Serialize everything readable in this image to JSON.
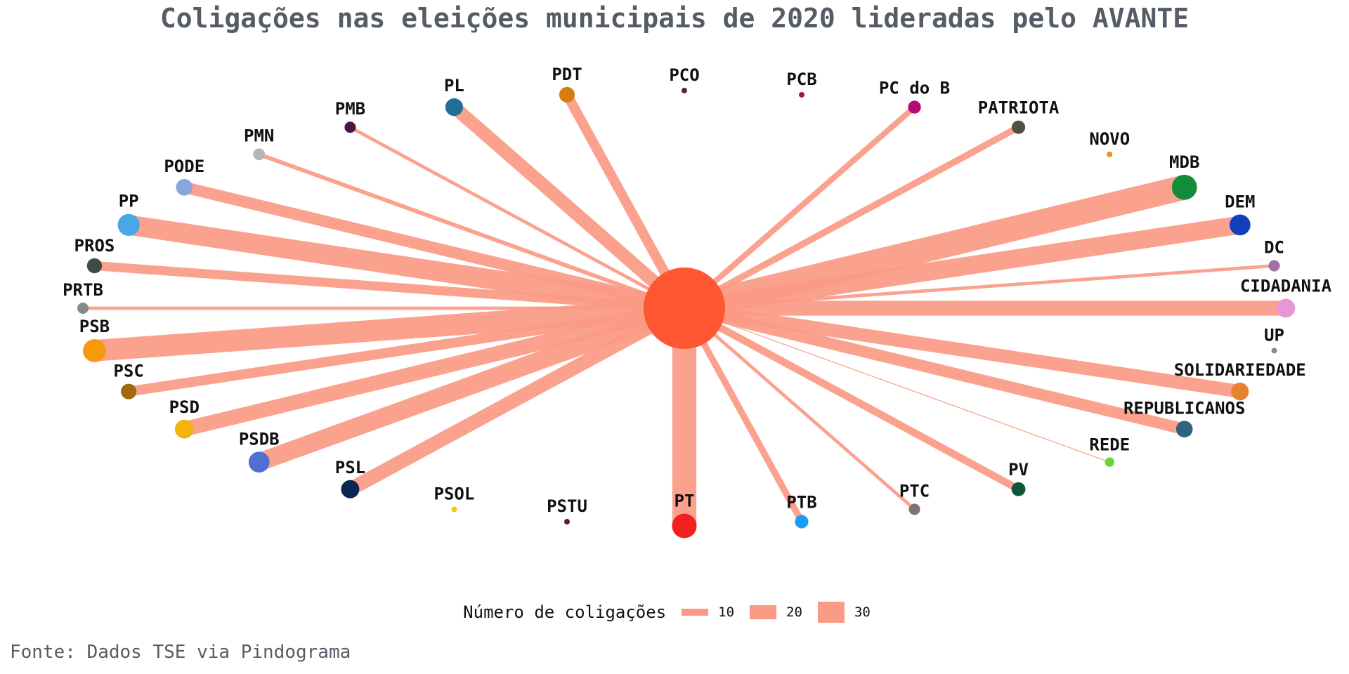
{
  "chart_data": {
    "type": "network",
    "title": "Coligações nas eleições municipais de 2020 lideradas pelo AVANTE",
    "center": {
      "name": "",
      "color": "#ff5733"
    },
    "edge_color": "#fb9a85",
    "nodes": [
      {
        "name": "PT",
        "color": "#f2211d",
        "value": 29
      },
      {
        "name": "PTB",
        "color": "#1a9ef5",
        "value": 8
      },
      {
        "name": "PTC",
        "color": "#7f7470",
        "value": 4
      },
      {
        "name": "PV",
        "color": "#0d5637",
        "value": 9
      },
      {
        "name": "REDE",
        "color": "#6bd33a",
        "value": 0.5
      },
      {
        "name": "REPUBLICANOS",
        "color": "#31627f",
        "value": 14
      },
      {
        "name": "SOLIDARIEDADE",
        "color": "#e58331",
        "value": 16
      },
      {
        "name": "UP",
        "color": "#8a8a8a",
        "value": 0
      },
      {
        "name": "CIDADANIA",
        "color": "#e996d6",
        "value": 18
      },
      {
        "name": "DC",
        "color": "#a06fa3",
        "value": 4
      },
      {
        "name": "DEM",
        "color": "#1240bb",
        "value": 22
      },
      {
        "name": "MDB",
        "color": "#128b3a",
        "value": 30
      },
      {
        "name": "NOVO",
        "color": "#f28e1c",
        "value": 0
      },
      {
        "name": "PATRIOTA",
        "color": "#4f5146",
        "value": 8
      },
      {
        "name": "PC do B",
        "color": "#b80a76",
        "value": 7
      },
      {
        "name": "PCB",
        "color": "#a01c2e",
        "value": 0
      },
      {
        "name": "PCO",
        "color": "#4f2b2e",
        "value": 0
      },
      {
        "name": "PDT",
        "color": "#d67d0e",
        "value": 12
      },
      {
        "name": "PL",
        "color": "#1f6f96",
        "value": 16
      },
      {
        "name": "PMB",
        "color": "#4e1541",
        "value": 4
      },
      {
        "name": "PMN",
        "color": "#b3b7b6",
        "value": 5
      },
      {
        "name": "PODE",
        "color": "#8aa4dc",
        "value": 14
      },
      {
        "name": "PP",
        "color": "#49a8e4",
        "value": 24
      },
      {
        "name": "PROS",
        "color": "#424a48",
        "value": 11
      },
      {
        "name": "PRTB",
        "color": "#848b8b",
        "value": 4
      },
      {
        "name": "PSB",
        "color": "#f69a0d",
        "value": 26
      },
      {
        "name": "PSC",
        "color": "#a0680f",
        "value": 12
      },
      {
        "name": "PSD",
        "color": "#f1b30c",
        "value": 18
      },
      {
        "name": "PSDB",
        "color": "#4f6fd2",
        "value": 22
      },
      {
        "name": "PSL",
        "color": "#0a2752",
        "value": 17
      },
      {
        "name": "PSOL",
        "color": "#f4c418",
        "value": 0
      },
      {
        "name": "PSTU",
        "color": "#61182a",
        "value": 0
      }
    ],
    "legend": {
      "title": "Número de coligações",
      "items": [
        {
          "label": "10",
          "value": 10
        },
        {
          "label": "20",
          "value": 20
        },
        {
          "label": "30",
          "value": 30
        }
      ]
    }
  },
  "source": "Fonte: Dados TSE via Pindograma"
}
